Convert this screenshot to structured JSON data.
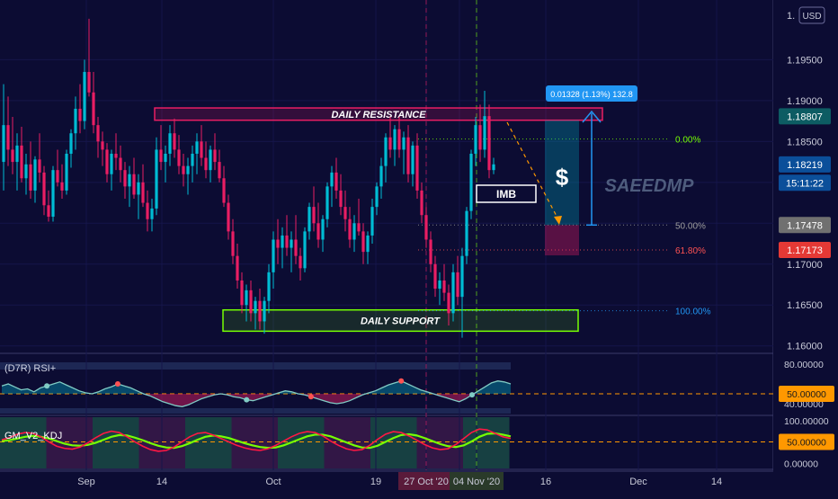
{
  "colors": {
    "background": "#0c0c33",
    "bull": "#00bcd4",
    "bear": "#e91e63",
    "resistance": "#e91e63",
    "support": "#76ff03",
    "fib_upper": "#76ff03",
    "fib_mid": "#9e9e9e",
    "fib_618": "#ff5252",
    "fib_100": "#2196f3",
    "rsi_line": "#80cbc4",
    "kdj_fast": "#ff1744",
    "kdj_slow": "#76ff03",
    "level_dash": "#ff9800",
    "price_badge_dark": "#2962ff",
    "price_badge_mid": "#707070",
    "price_badge_red": "#e53935",
    "measure_badge": "#2196f3"
  },
  "chart_data": [
    {
      "type": "candlestick",
      "name": "main",
      "currency": "USD",
      "y_ticks": [
        "1.16000",
        "1.16500",
        "1.17000",
        "1.17500",
        "1.18000",
        "1.18500",
        "1.19000",
        "1.19500"
      ],
      "y_top_label": "1.",
      "x_ticks": [
        "Sep",
        "14",
        "Oct",
        "19",
        "27 Oct '20",
        "Nov",
        "04 Nov '20",
        "16",
        "Dec",
        "14"
      ],
      "ylim": [
        1.1592,
        1.2023
      ],
      "candles": [
        [
          1.1825,
          1.192,
          1.179,
          1.187
        ],
        [
          1.187,
          1.1905,
          1.182,
          1.184
        ],
        [
          1.184,
          1.188,
          1.181,
          1.1825
        ],
        [
          1.1825,
          1.186,
          1.179,
          1.1845
        ],
        [
          1.1845,
          1.1868,
          1.18,
          1.1805
        ],
        [
          1.1805,
          1.1835,
          1.1785,
          1.1822
        ],
        [
          1.1822,
          1.185,
          1.178,
          1.179
        ],
        [
          1.179,
          1.1832,
          1.1775,
          1.1828
        ],
        [
          1.1828,
          1.186,
          1.18,
          1.1812
        ],
        [
          1.1812,
          1.182,
          1.176,
          1.1772
        ],
        [
          1.1772,
          1.179,
          1.1752,
          1.1758
        ],
        [
          1.1758,
          1.182,
          1.1752,
          1.1815
        ],
        [
          1.1815,
          1.184,
          1.1795,
          1.18
        ],
        [
          1.18,
          1.1822,
          1.178,
          1.179
        ],
        [
          1.179,
          1.184,
          1.1785,
          1.1835
        ],
        [
          1.1835,
          1.1865,
          1.1818,
          1.186
        ],
        [
          1.186,
          1.1905,
          1.184,
          1.189
        ],
        [
          1.189,
          1.192,
          1.186,
          1.1875
        ],
        [
          1.1875,
          1.195,
          1.1865,
          1.1935
        ],
        [
          1.1935,
          1.2,
          1.1905,
          1.191
        ],
        [
          1.191,
          1.1935,
          1.186,
          1.187
        ],
        [
          1.187,
          1.188,
          1.183,
          1.185
        ],
        [
          1.185,
          1.1862,
          1.182,
          1.184
        ],
        [
          1.184,
          1.1848,
          1.18,
          1.181
        ],
        [
          1.181,
          1.184,
          1.179,
          1.1835
        ],
        [
          1.1835,
          1.186,
          1.1815,
          1.183
        ],
        [
          1.183,
          1.1845,
          1.18,
          1.1815
        ],
        [
          1.1815,
          1.1825,
          1.178,
          1.1795
        ],
        [
          1.1795,
          1.182,
          1.177,
          1.181
        ],
        [
          1.181,
          1.183,
          1.178,
          1.1785
        ],
        [
          1.1785,
          1.181,
          1.1755,
          1.18
        ],
        [
          1.18,
          1.1822,
          1.177,
          1.1775
        ],
        [
          1.1775,
          1.179,
          1.174,
          1.1755
        ],
        [
          1.1755,
          1.178,
          1.174,
          1.1768
        ],
        [
          1.1768,
          1.1855,
          1.176,
          1.184
        ],
        [
          1.184,
          1.187,
          1.1815,
          1.1825
        ],
        [
          1.1825,
          1.1845,
          1.18,
          1.1835
        ],
        [
          1.1835,
          1.187,
          1.182,
          1.186
        ],
        [
          1.186,
          1.1878,
          1.183,
          1.184
        ],
        [
          1.184,
          1.1858,
          1.181,
          1.182
        ],
        [
          1.182,
          1.1835,
          1.1795,
          1.181
        ],
        [
          1.181,
          1.183,
          1.1785,
          1.182
        ],
        [
          1.182,
          1.1845,
          1.18,
          1.1835
        ],
        [
          1.1835,
          1.186,
          1.181,
          1.185
        ],
        [
          1.185,
          1.187,
          1.182,
          1.183
        ],
        [
          1.183,
          1.185,
          1.1805,
          1.1815
        ],
        [
          1.1815,
          1.1845,
          1.18,
          1.184
        ],
        [
          1.184,
          1.186,
          1.1815,
          1.1825
        ],
        [
          1.1825,
          1.184,
          1.18,
          1.1805
        ],
        [
          1.1805,
          1.182,
          1.177,
          1.1775
        ],
        [
          1.1775,
          1.1785,
          1.173,
          1.174
        ],
        [
          1.174,
          1.1755,
          1.17,
          1.171
        ],
        [
          1.171,
          1.1725,
          1.167,
          1.168
        ],
        [
          1.168,
          1.169,
          1.164,
          1.165
        ],
        [
          1.165,
          1.1675,
          1.163,
          1.1668
        ],
        [
          1.1668,
          1.168,
          1.163,
          1.164
        ],
        [
          1.164,
          1.166,
          1.162,
          1.1655
        ],
        [
          1.1655,
          1.167,
          1.162,
          1.163
        ],
        [
          1.163,
          1.166,
          1.1615,
          1.1655
        ],
        [
          1.1655,
          1.17,
          1.164,
          1.169
        ],
        [
          1.169,
          1.174,
          1.167,
          1.173
        ],
        [
          1.173,
          1.1755,
          1.17,
          1.172
        ],
        [
          1.172,
          1.1745,
          1.1695,
          1.1735
        ],
        [
          1.1735,
          1.176,
          1.171,
          1.172
        ],
        [
          1.172,
          1.174,
          1.169,
          1.173
        ],
        [
          1.173,
          1.176,
          1.17,
          1.171
        ],
        [
          1.171,
          1.172,
          1.168,
          1.1695
        ],
        [
          1.1695,
          1.1745,
          1.169,
          1.174
        ],
        [
          1.174,
          1.1775,
          1.173,
          1.177
        ],
        [
          1.177,
          1.1795,
          1.174,
          1.175
        ],
        [
          1.175,
          1.1775,
          1.172,
          1.173
        ],
        [
          1.173,
          1.176,
          1.1715,
          1.1755
        ],
        [
          1.1755,
          1.18,
          1.1745,
          1.1795
        ],
        [
          1.1795,
          1.182,
          1.177,
          1.1812
        ],
        [
          1.1812,
          1.183,
          1.178,
          1.179
        ],
        [
          1.179,
          1.181,
          1.176,
          1.177
        ],
        [
          1.177,
          1.179,
          1.174,
          1.1755
        ],
        [
          1.1755,
          1.177,
          1.172,
          1.173
        ],
        [
          1.173,
          1.176,
          1.1715,
          1.175
        ],
        [
          1.175,
          1.178,
          1.1735,
          1.174
        ],
        [
          1.174,
          1.175,
          1.17,
          1.1715
        ],
        [
          1.1715,
          1.174,
          1.17,
          1.1735
        ],
        [
          1.1735,
          1.178,
          1.1725,
          1.177
        ],
        [
          1.177,
          1.18,
          1.176,
          1.1795
        ],
        [
          1.1795,
          1.183,
          1.178,
          1.182
        ],
        [
          1.182,
          1.186,
          1.18,
          1.1855
        ],
        [
          1.1855,
          1.188,
          1.183,
          1.184
        ],
        [
          1.184,
          1.187,
          1.182,
          1.1865
        ],
        [
          1.1865,
          1.188,
          1.183,
          1.184
        ],
        [
          1.184,
          1.1862,
          1.181,
          1.1855
        ],
        [
          1.1855,
          1.187,
          1.18,
          1.181
        ],
        [
          1.181,
          1.185,
          1.1795,
          1.1845
        ],
        [
          1.1845,
          1.186,
          1.178,
          1.179
        ],
        [
          1.179,
          1.18,
          1.175,
          1.176
        ],
        [
          1.176,
          1.177,
          1.172,
          1.173
        ],
        [
          1.173,
          1.174,
          1.169,
          1.17
        ],
        [
          1.17,
          1.171,
          1.166,
          1.167
        ],
        [
          1.167,
          1.169,
          1.165,
          1.168
        ],
        [
          1.168,
          1.17,
          1.1655,
          1.1665
        ],
        [
          1.1665,
          1.1675,
          1.1625,
          1.164
        ],
        [
          1.164,
          1.17,
          1.163,
          1.169
        ],
        [
          1.169,
          1.171,
          1.165,
          1.166
        ],
        [
          1.166,
          1.172,
          1.161,
          1.171
        ],
        [
          1.171,
          1.177,
          1.17,
          1.1765
        ],
        [
          1.1765,
          1.184,
          1.1755,
          1.1835
        ],
        [
          1.1835,
          1.188,
          1.182,
          1.187
        ],
        [
          1.187,
          1.1895,
          1.1825,
          1.184
        ],
        [
          1.184,
          1.1912,
          1.183,
          1.1881
        ],
        [
          1.1881,
          1.1895,
          1.1805,
          1.1815
        ],
        [
          1.1815,
          1.183,
          1.181,
          1.1822
        ]
      ],
      "annotations": [
        {
          "kind": "zone",
          "label": "DAILY RESISTANCE",
          "from": 1.1876,
          "to": 1.1891
        },
        {
          "kind": "zone",
          "label": "DAILY SUPPORT",
          "from": 1.1618,
          "to": 1.1644
        },
        {
          "kind": "label",
          "text": "IMB"
        },
        {
          "kind": "label",
          "text": "$"
        },
        {
          "kind": "watermark",
          "text": "SAEEDMP"
        },
        {
          "kind": "measure",
          "text": "0.01328 (1.13%) 132.8"
        }
      ],
      "fib_levels": [
        {
          "label": "0.00%",
          "price": 1.1853
        },
        {
          "label": "50.00%",
          "price": 1.17478
        },
        {
          "label": "61.80%",
          "price": 1.17173
        },
        {
          "label": "100.00%",
          "price": 1.1643
        }
      ],
      "price_badges": [
        {
          "value": "1.18807",
          "price": 1.18807,
          "style": "dark"
        },
        {
          "value": "1.18219",
          "price": 1.18219,
          "style": "dark"
        },
        {
          "value": "15:11:22",
          "price": 1.17995,
          "style": "dark"
        },
        {
          "value": "1.17478",
          "price": 1.17478,
          "style": "mid"
        },
        {
          "value": "1.17173",
          "price": 1.17173,
          "style": "red"
        }
      ]
    },
    {
      "type": "line",
      "name": "(D7R) RSI+",
      "y_ticks": [
        "80.00000",
        "40.00000"
      ],
      "level": {
        "value": 50,
        "label": "50.00000"
      },
      "ylim": [
        30,
        90
      ],
      "values": [
        58,
        60,
        57,
        54,
        55,
        52,
        56,
        58,
        60,
        62,
        59,
        56,
        53,
        51,
        50,
        52,
        55,
        57,
        60,
        58,
        56,
        53,
        50,
        48,
        45,
        42,
        40,
        38,
        37,
        39,
        42,
        45,
        47,
        49,
        50,
        49,
        47,
        46,
        44,
        43,
        45,
        47,
        49,
        51,
        53,
        52,
        50,
        49,
        47,
        45,
        43,
        41,
        40,
        41,
        43,
        46,
        49,
        51,
        53,
        56,
        59,
        61,
        63,
        60,
        57,
        54,
        52,
        50,
        48,
        46,
        44,
        42,
        45,
        49,
        53,
        57,
        61,
        63,
        62,
        60
      ]
    },
    {
      "type": "line",
      "name": "GM_V2_KDJ",
      "y_ticks": [
        "100.00000",
        "50.00000",
        "0.00000"
      ],
      "level": {
        "value": 50,
        "label": "50.00000"
      },
      "ylim": [
        -10,
        110
      ],
      "series": [
        {
          "name": "K",
          "values": [
            55,
            60,
            68,
            72,
            70,
            62,
            50,
            40,
            35,
            33,
            38,
            48,
            60,
            70,
            75,
            72,
            62,
            50,
            40,
            32,
            28,
            30,
            38,
            50,
            62,
            70,
            72,
            66,
            58,
            50,
            42,
            36,
            32,
            30,
            34,
            42,
            52,
            62,
            70,
            74,
            72,
            64,
            52,
            42,
            34,
            30,
            32,
            42,
            56,
            68,
            74,
            72,
            64,
            54,
            44,
            36,
            32,
            34,
            44,
            58,
            72,
            80,
            78,
            70,
            62,
            58
          ]
        },
        {
          "name": "D",
          "values": [
            52,
            54,
            58,
            62,
            64,
            62,
            58,
            52,
            46,
            42,
            41,
            43,
            48,
            55,
            62,
            66,
            65,
            60,
            54,
            47,
            41,
            37,
            36,
            40,
            47,
            55,
            62,
            65,
            63,
            59,
            53,
            47,
            42,
            38,
            36,
            37,
            42,
            49,
            56,
            63,
            67,
            67,
            63,
            56,
            49,
            42,
            37,
            36,
            41,
            50,
            59,
            66,
            68,
            65,
            59,
            52,
            45,
            40,
            38,
            42,
            51,
            62,
            69,
            70,
            67,
            63
          ]
        }
      ]
    }
  ]
}
